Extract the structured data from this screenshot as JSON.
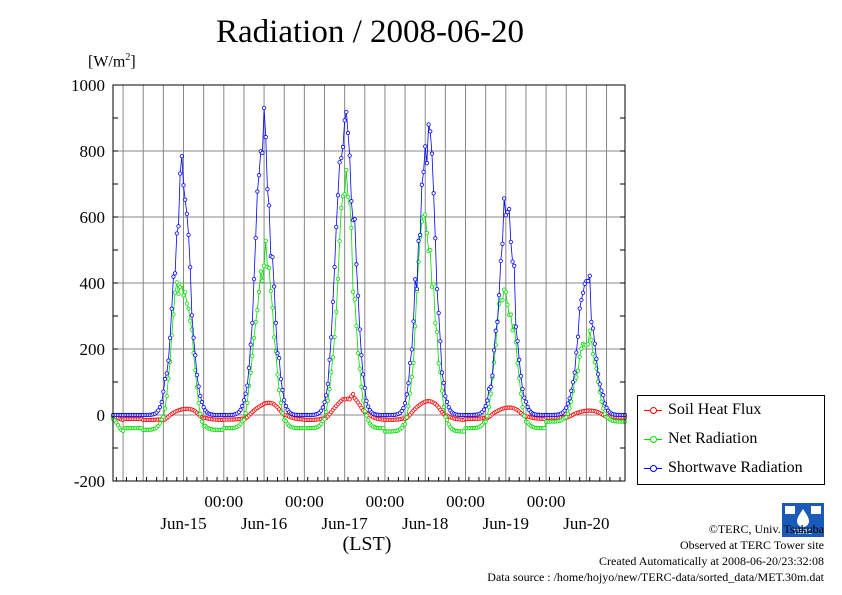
{
  "header": {
    "title": "Radiation / 2008-06-20",
    "unit": "[W/m",
    "unit_sup": "2",
    "unit_close": "]"
  },
  "axis": {
    "xlabel": "(LST)"
  },
  "legend": {
    "items": [
      {
        "label": "Soil Heat Flux",
        "color": "#ff0000"
      },
      {
        "label": "Net Radiation",
        "color": "#00dd00"
      },
      {
        "label": "Shortwave Radiation",
        "color": "#0000ff"
      }
    ]
  },
  "credits": {
    "copyright": "©TERC, Univ. Tsukuba",
    "observed": "Observed at TERC Tower site",
    "created": "Created Automatically at 2008-06-20/23:32:08",
    "source": "Data source : /home/hojyo/new/TERC-data/sorted_data/MET.30m.dat"
  },
  "logo": {
    "text": "TERC"
  },
  "chart_data": {
    "type": "line",
    "title": "Radiation / 2008-06-20",
    "ylabel": "[W/m2]",
    "xlabel": "(LST)",
    "ylim": [
      -200,
      1000
    ],
    "yticks": [
      -200,
      0,
      200,
      400,
      600,
      800,
      1000
    ],
    "xlim": [
      "2008-06-14 15:00",
      "2008-06-20 23:30"
    ],
    "xtick_times": [
      "00:00",
      "00:00",
      "00:00",
      "00:00",
      "00:00"
    ],
    "xtick_positions": [
      "2008-06-16 00:00",
      "2008-06-17 00:00",
      "2008-06-18 00:00",
      "2008-06-19 00:00",
      "2008-06-20 00:00"
    ],
    "date_labels": [
      "Jun-15",
      "Jun-16",
      "Jun-17",
      "Jun-18",
      "Jun-19",
      "Jun-20"
    ],
    "date_label_positions": [
      "2008-06-15 12:00",
      "2008-06-16 12:00",
      "2008-06-17 12:00",
      "2008-06-18 12:00",
      "2008-06-19 12:00",
      "2008-06-20 12:00"
    ],
    "grid": true,
    "legend_position": "bottom-right, outside plot",
    "series": [
      {
        "name": "Soil Heat Flux",
        "color": "#ff0000",
        "days": [
          {
            "date": "2008-06-14",
            "peak": 0,
            "peak_time": 13,
            "width": 3.5,
            "night": -12
          },
          {
            "date": "2008-06-15",
            "peak": 22,
            "peak_time": 13,
            "width": 3.5,
            "night": -15
          },
          {
            "date": "2008-06-16",
            "peak": 40,
            "peak_time": 13.5,
            "width": 3.5,
            "night": -14
          },
          {
            "date": "2008-06-17",
            "peak": 60,
            "peak_time": 13.5,
            "width": 3.5,
            "night": -15
          },
          {
            "date": "2008-06-18",
            "peak": 45,
            "peak_time": 13,
            "width": 3.5,
            "night": -15
          },
          {
            "date": "2008-06-19",
            "peak": 25,
            "peak_time": 13,
            "width": 3.5,
            "night": -12
          },
          {
            "date": "2008-06-20",
            "peak": 15,
            "peak_time": 13,
            "width": 3.5,
            "night": -8
          }
        ]
      },
      {
        "name": "Net Radiation",
        "color": "#00dd00",
        "days": [
          {
            "date": "2008-06-14",
            "peak": 0,
            "peak_time": 12,
            "width": 2.6,
            "night": -40
          },
          {
            "date": "2008-06-15",
            "peak": 450,
            "peak_time": 11.5,
            "width": 2.6,
            "night": -45
          },
          {
            "date": "2008-06-16",
            "peak": 480,
            "peak_time": 12,
            "width": 2.6,
            "night": -40
          },
          {
            "date": "2008-06-17",
            "peak": 660,
            "peak_time": 12.3,
            "width": 2.6,
            "night": -40
          },
          {
            "date": "2008-06-18",
            "peak": 600,
            "peak_time": 12.3,
            "width": 2.6,
            "night": -50
          },
          {
            "date": "2008-06-19",
            "peak": 400,
            "peak_time": 12,
            "width": 2.6,
            "night": -40
          },
          {
            "date": "2008-06-20",
            "peak": 250,
            "peak_time": 12,
            "width": 2.6,
            "night": -20
          }
        ]
      },
      {
        "name": "Shortwave Radiation",
        "color": "#0000ff",
        "days": [
          {
            "date": "2008-06-14",
            "peak": 0,
            "peak_time": 12,
            "width": 2.5,
            "night": 0
          },
          {
            "date": "2008-06-15",
            "peak": 700,
            "peak_time": 11.5,
            "width": 2.5,
            "night": 0
          },
          {
            "date": "2008-06-16",
            "peak": 800,
            "peak_time": 12,
            "width": 2.5,
            "night": 0
          },
          {
            "date": "2008-06-17",
            "peak": 930,
            "peak_time": 12.3,
            "width": 2.5,
            "night": 0
          },
          {
            "date": "2008-06-18",
            "peak": 860,
            "peak_time": 12.3,
            "width": 2.5,
            "night": 0
          },
          {
            "date": "2008-06-19",
            "peak": 590,
            "peak_time": 12.2,
            "width": 2.5,
            "night": 0
          },
          {
            "date": "2008-06-20",
            "peak": 390,
            "peak_time": 12,
            "width": 2.5,
            "night": 0
          }
        ]
      }
    ]
  }
}
